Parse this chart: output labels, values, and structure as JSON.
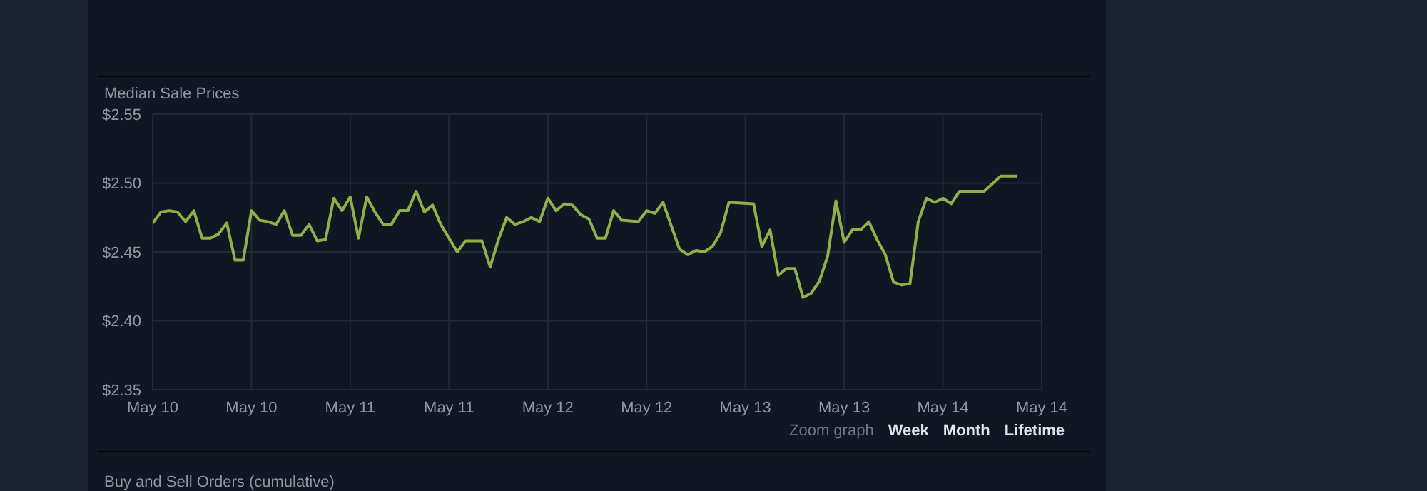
{
  "chart_data": {
    "type": "line",
    "title": "Median Sale Prices",
    "x": [
      "--05-10T00:00",
      "--05-10T01:00",
      "--05-10T02:00",
      "--05-10T03:00",
      "--05-10T04:00",
      "--05-10T05:00",
      "--05-10T06:00",
      "--05-10T07:00",
      "--05-10T08:00",
      "--05-10T09:00",
      "--05-10T10:00",
      "--05-10T11:00",
      "--05-10T12:00",
      "--05-10T13:00",
      "--05-10T14:00",
      "--05-10T15:00",
      "--05-10T16:00",
      "--05-10T17:00",
      "--05-10T18:00",
      "--05-10T19:00",
      "--05-10T20:00",
      "--05-10T21:00",
      "--05-10T22:00",
      "--05-10T23:00",
      "--05-11T00:00",
      "--05-11T01:00",
      "--05-11T02:00",
      "--05-11T03:00",
      "--05-11T04:00",
      "--05-11T05:00",
      "--05-11T06:00",
      "--05-11T07:00",
      "--05-11T08:00",
      "--05-11T09:00",
      "--05-11T10:00",
      "--05-11T11:00",
      "--05-11T12:00",
      "--05-11T13:00",
      "--05-11T14:00",
      "--05-11T15:00",
      "--05-11T16:00",
      "--05-11T17:00",
      "--05-11T18:00",
      "--05-11T19:00",
      "--05-11T20:00",
      "--05-11T21:00",
      "--05-11T22:00",
      "--05-11T23:00",
      "--05-12T00:00",
      "--05-12T01:00",
      "--05-12T02:00",
      "--05-12T03:00",
      "--05-12T04:00",
      "--05-12T05:00",
      "--05-12T06:00",
      "--05-12T07:00",
      "--05-12T08:00",
      "--05-12T09:00",
      "--05-12T11:00",
      "--05-12T12:00",
      "--05-12T13:00",
      "--05-12T14:00",
      "--05-12T15:00",
      "--05-12T16:00",
      "--05-12T17:00",
      "--05-12T18:00",
      "--05-12T19:00",
      "--05-12T20:00",
      "--05-12T21:00",
      "--05-12T22:00",
      "--05-13T01:00",
      "--05-13T02:00",
      "--05-13T03:00",
      "--05-13T04:00",
      "--05-13T05:00",
      "--05-13T06:00",
      "--05-13T07:00",
      "--05-13T08:00",
      "--05-13T09:00",
      "--05-13T10:00",
      "--05-13T11:00",
      "--05-13T12:00",
      "--05-13T13:00",
      "--05-13T14:00",
      "--05-13T15:00",
      "--05-13T16:00",
      "--05-13T17:00",
      "--05-13T18:00",
      "--05-13T19:00",
      "--05-13T20:00",
      "--05-13T21:00",
      "--05-13T22:00",
      "--05-13T23:00",
      "--05-14T00:00",
      "--05-14T01:00",
      "--05-14T02:00",
      "--05-14T05:00",
      "--05-14T07:00",
      "--05-14T09:00"
    ],
    "series": [
      {
        "color": "#8db049",
        "values": [
          2.471,
          2.479,
          2.48,
          2.479,
          2.472,
          2.48,
          2.46,
          2.46,
          2.463,
          2.471,
          2.444,
          2.444,
          2.48,
          2.473,
          2.472,
          2.47,
          2.48,
          2.462,
          2.462,
          2.47,
          2.458,
          2.459,
          2.489,
          2.48,
          2.49,
          2.46,
          2.49,
          2.479,
          2.47,
          2.47,
          2.48,
          2.48,
          2.494,
          2.479,
          2.484,
          2.47,
          2.46,
          2.45,
          2.458,
          2.458,
          2.458,
          2.439,
          2.459,
          2.475,
          2.47,
          2.472,
          2.475,
          2.472,
          2.489,
          2.48,
          2.485,
          2.484,
          2.477,
          2.474,
          2.46,
          2.46,
          2.48,
          2.473,
          2.472,
          2.48,
          2.478,
          2.486,
          2.469,
          2.452,
          2.448,
          2.451,
          2.45,
          2.454,
          2.464,
          2.486,
          2.485,
          2.454,
          2.466,
          2.433,
          2.438,
          2.438,
          2.417,
          2.42,
          2.429,
          2.447,
          2.487,
          2.457,
          2.466,
          2.466,
          2.472,
          2.459,
          2.448,
          2.428,
          2.426,
          2.427,
          2.472,
          2.489,
          2.486,
          2.489,
          2.485,
          2.494,
          2.494,
          2.505,
          2.505
        ]
      }
    ],
    "xlim": [
      "--05-10T00:00",
      "--05-14T12:00"
    ],
    "xticks": [
      {
        "value": "--05-10T00:00",
        "label": "May 10"
      },
      {
        "value": "--05-10T12:00",
        "label": "May 10"
      },
      {
        "value": "--05-11T00:00",
        "label": "May 11"
      },
      {
        "value": "--05-11T12:00",
        "label": "May 11"
      },
      {
        "value": "--05-12T00:00",
        "label": "May 12"
      },
      {
        "value": "--05-12T12:00",
        "label": "May 12"
      },
      {
        "value": "--05-13T00:00",
        "label": "May 13"
      },
      {
        "value": "--05-13T12:00",
        "label": "May 13"
      },
      {
        "value": "--05-14T00:00",
        "label": "May 14"
      },
      {
        "value": "--05-14T12:00",
        "label": "May 14"
      }
    ],
    "ylim": [
      2.35,
      2.55
    ],
    "yticks": [
      {
        "value": 2.35,
        "label": "$2.35"
      },
      {
        "value": 2.4,
        "label": "$2.40"
      },
      {
        "value": 2.45,
        "label": "$2.45"
      },
      {
        "value": 2.5,
        "label": "$2.50"
      },
      {
        "value": 2.55,
        "label": "$2.55"
      }
    ],
    "grid": true,
    "marker": "none",
    "line_style": "solid",
    "annotations": [
      "Zoom graph",
      "Week",
      "Month",
      "Lifetime",
      "Buy and Sell Orders (cumulative)"
    ]
  }
}
